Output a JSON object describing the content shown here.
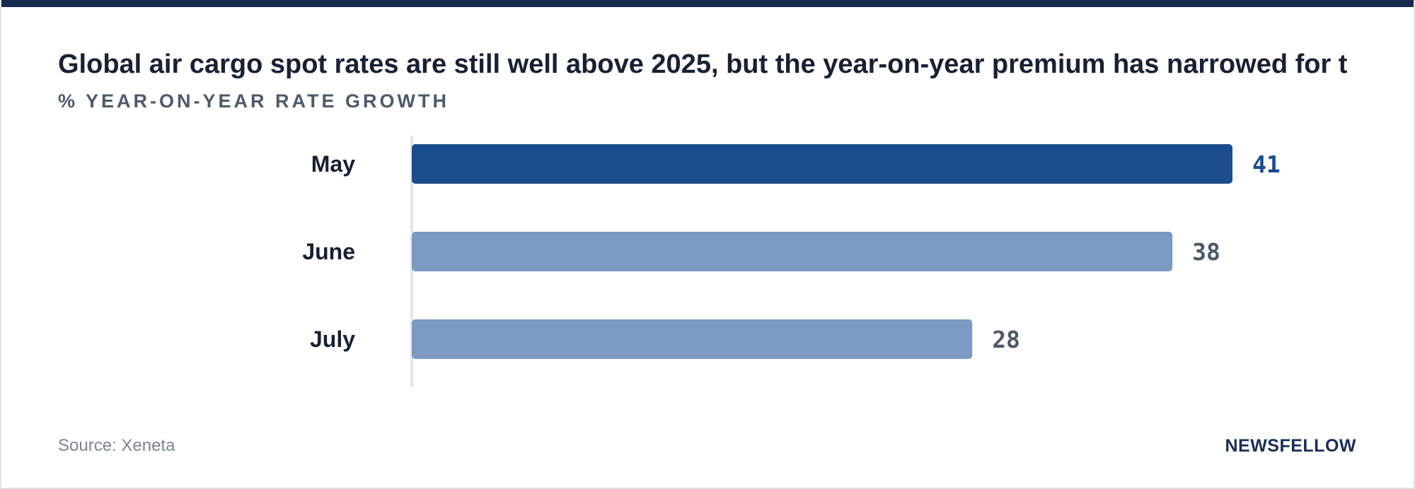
{
  "header": {
    "title": "Global air cargo spot rates are still well above 2025, but the year-on-year premium has narrowed for t",
    "subtitle": "% YEAR-ON-YEAR RATE GROWTH"
  },
  "footer": {
    "source": "Source: Xeneta",
    "brand": "NEWSFELLOW"
  },
  "colors": {
    "top_band": "#162a4d",
    "highlight_bar": "#1b4c8d",
    "bar": "#7d9ac4",
    "highlight_label": "#1b4c8d",
    "value_label": "#4d5a6b",
    "category_label": "#182033",
    "axis": "#e3e6ea"
  },
  "chart_data": {
    "type": "bar",
    "orientation": "horizontal",
    "categories": [
      "May",
      "June",
      "July"
    ],
    "values": [
      41,
      38,
      28
    ],
    "highlight_index": 0,
    "title": "Global air cargo spot rates are still well above 2025, but the year-on-year premium has narrowed for t",
    "subtitle": "% YEAR-ON-YEAR RATE GROWTH",
    "xlim": [
      0,
      41
    ],
    "grid": false,
    "legend": "none"
  }
}
